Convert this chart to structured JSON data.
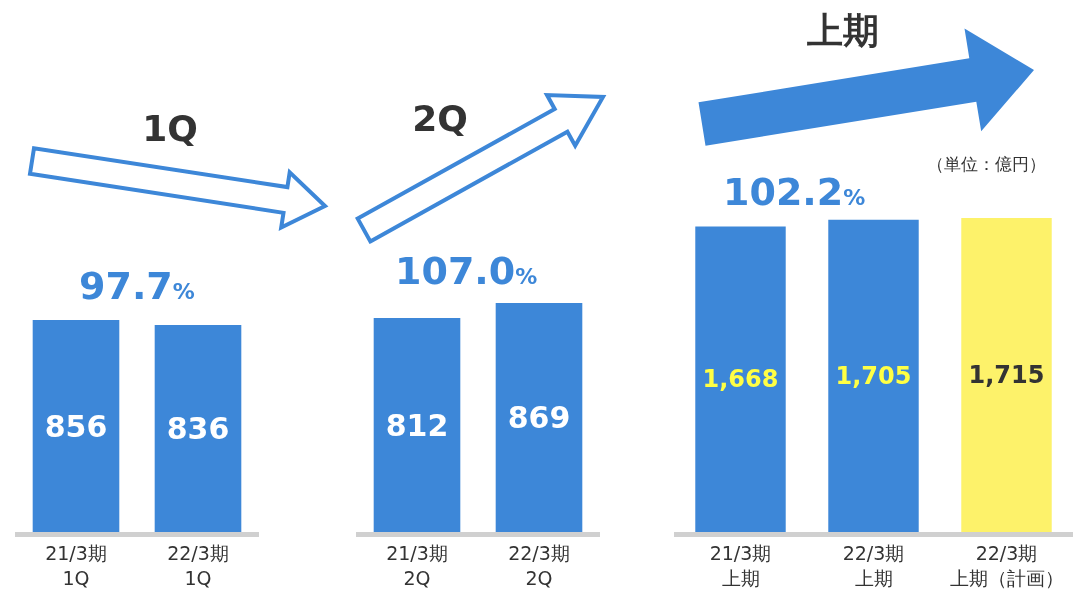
{
  "chart_data": [
    {
      "type": "bar",
      "title": "1Q",
      "categories": [
        "21/3期1Q",
        "22/3期1Q"
      ],
      "values": [
        856,
        836
      ],
      "value_labels": [
        "856",
        "836"
      ],
      "color": "#3d87d8",
      "grid": false,
      "legend": false,
      "tick_labels": "x",
      "annotations": [
        "97.7%"
      ]
    },
    {
      "type": "bar",
      "title": "2Q",
      "categories": [
        "21/3期2Q",
        "22/3期2Q"
      ],
      "values": [
        812,
        869
      ],
      "value_labels": [
        "812",
        "869"
      ],
      "color": "#3d87d8",
      "grid": false,
      "legend": false,
      "tick_labels": "x",
      "annotations": [
        "107.0%"
      ]
    },
    {
      "type": "bar",
      "title": "上期",
      "categories": [
        "21/3期上期",
        "22/3期上期",
        "22/3期上期（計画）"
      ],
      "values": [
        1668,
        1705,
        1715
      ],
      "value_labels": [
        "1,668",
        "1,705",
        "1,715"
      ],
      "colors": [
        "#3d87d8",
        "#3d87d8",
        "#fdf26a"
      ],
      "grid": false,
      "legend": false,
      "tick_labels": "x",
      "annotations": [
        "102.2%",
        "（単位：億円）"
      ]
    }
  ]
}
